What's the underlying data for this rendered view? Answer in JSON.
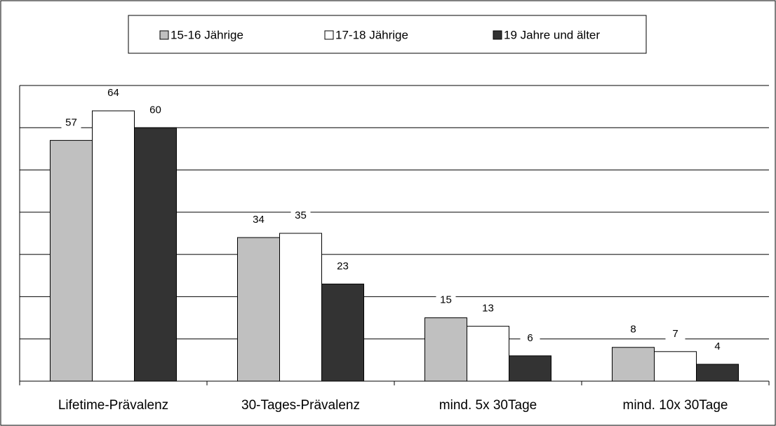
{
  "chart_data": {
    "type": "bar",
    "categories": [
      "Lifetime-Prävalenz",
      "30-Tages-Prävalenz",
      "mind. 5x 30Tage",
      "mind. 10x 30Tage"
    ],
    "series": [
      {
        "name": "15-16 Jährige",
        "color": "#c0c0c0",
        "values": [
          57,
          34,
          15,
          8
        ]
      },
      {
        "name": "17-18 Jährige",
        "color": "#ffffff",
        "values": [
          64,
          35,
          13,
          7
        ]
      },
      {
        "name": "19 Jahre und älter",
        "color": "#333333",
        "values": [
          60,
          23,
          6,
          4
        ]
      }
    ],
    "ylim": [
      0,
      70
    ],
    "yticks": [
      0,
      10,
      20,
      30,
      40,
      50,
      60,
      70
    ],
    "grid": true,
    "legend": "top"
  }
}
